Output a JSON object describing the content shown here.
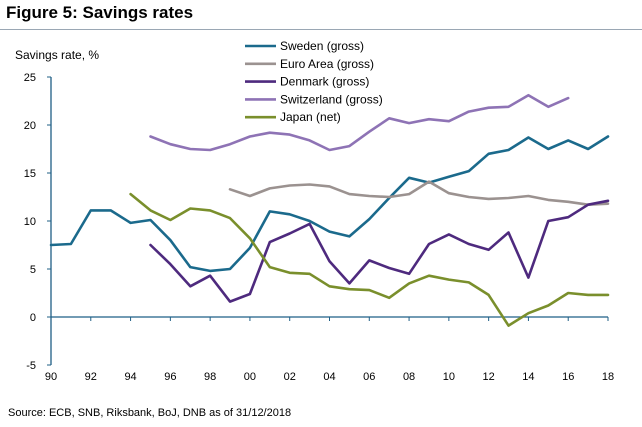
{
  "figure": {
    "title": "Figure 5: Savings rates",
    "source": "Source: ECB, SNB, Riksbank, BoJ, DNB as of 31/12/2018"
  },
  "chart_data": {
    "type": "line",
    "title": "Figure 5: Savings rates",
    "ylabel": "Savings rate, %",
    "xlabel": "",
    "x": [
      1990,
      1991,
      1992,
      1993,
      1994,
      1995,
      1996,
      1997,
      1998,
      1999,
      2000,
      2001,
      2002,
      2003,
      2004,
      2005,
      2006,
      2007,
      2008,
      2009,
      2010,
      2011,
      2012,
      2013,
      2014,
      2015,
      2016,
      2017,
      2018
    ],
    "xlim": [
      1990,
      2018
    ],
    "ylim": [
      -5,
      25
    ],
    "yticks": [
      "-5",
      "0",
      "5",
      "10",
      "15",
      "20",
      "25"
    ],
    "xticks": [
      "90",
      "92",
      "94",
      "96",
      "98",
      "00",
      "02",
      "04",
      "06",
      "08",
      "10",
      "12",
      "14",
      "16",
      "18"
    ],
    "grid": false,
    "legend_placement": "top-center",
    "series": [
      {
        "name": "Sweden (gross)",
        "color": "#1b6a8c",
        "values": [
          7.5,
          7.6,
          11.1,
          11.1,
          9.8,
          10.1,
          8.0,
          5.2,
          4.8,
          5.0,
          7.2,
          11.0,
          10.7,
          10.0,
          8.9,
          8.4,
          10.2,
          12.4,
          14.5,
          14.0,
          14.6,
          15.2,
          17.0,
          17.4,
          18.7,
          17.5,
          18.4,
          17.5,
          18.8
        ]
      },
      {
        "name": "Euro Area (gross)",
        "color": "#9b9290",
        "values": [
          null,
          null,
          null,
          null,
          null,
          null,
          null,
          null,
          null,
          13.3,
          12.6,
          13.4,
          13.7,
          13.8,
          13.6,
          12.8,
          12.6,
          12.5,
          12.8,
          14.1,
          12.9,
          12.5,
          12.3,
          12.4,
          12.6,
          12.2,
          12.0,
          11.7,
          11.8
        ]
      },
      {
        "name": "Denmark (gross)",
        "color": "#4e2a7e",
        "values": [
          null,
          null,
          null,
          null,
          null,
          7.5,
          5.5,
          3.2,
          4.3,
          1.6,
          2.4,
          7.8,
          8.7,
          9.7,
          5.8,
          3.5,
          5.9,
          5.1,
          4.5,
          7.6,
          8.6,
          7.6,
          7.0,
          8.8,
          4.1,
          10.0,
          10.4,
          11.7,
          12.1
        ]
      },
      {
        "name": "Switzerland (gross)",
        "color": "#8e73b5",
        "values": [
          null,
          null,
          null,
          null,
          null,
          18.8,
          18.0,
          17.5,
          17.4,
          18.0,
          18.8,
          19.2,
          19.0,
          18.4,
          17.4,
          17.8,
          19.3,
          20.7,
          20.2,
          20.6,
          20.4,
          21.4,
          21.8,
          21.9,
          23.1,
          21.9,
          22.8,
          null,
          null
        ]
      },
      {
        "name": "Japan (net)",
        "color": "#7a8f2c",
        "values": [
          null,
          null,
          null,
          null,
          12.8,
          11.1,
          10.1,
          11.3,
          11.1,
          10.3,
          8.2,
          5.2,
          4.6,
          4.5,
          3.2,
          2.9,
          2.8,
          2.0,
          3.5,
          4.3,
          3.9,
          3.6,
          2.3,
          -0.9,
          0.4,
          1.2,
          2.5,
          2.3,
          2.3
        ]
      }
    ]
  }
}
